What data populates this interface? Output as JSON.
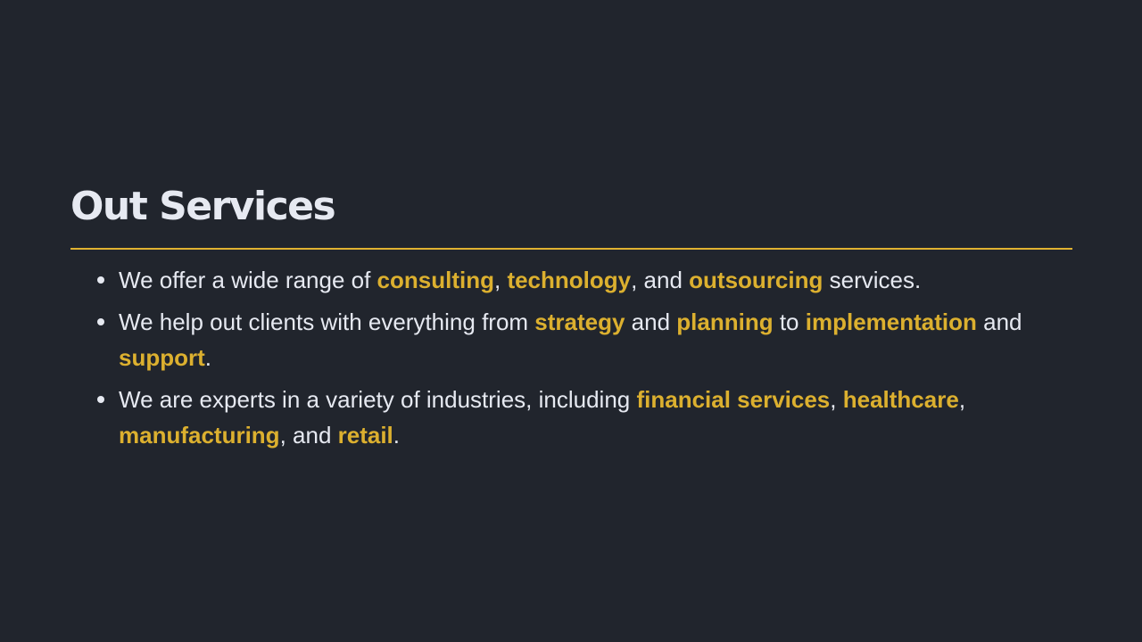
{
  "slide": {
    "title": "Out Services",
    "bullets": [
      {
        "segments": [
          {
            "text": "We offer a wide range of ",
            "highlight": false
          },
          {
            "text": "consulting",
            "highlight": true
          },
          {
            "text": ", ",
            "highlight": false
          },
          {
            "text": "technology",
            "highlight": true
          },
          {
            "text": ", and ",
            "highlight": false
          },
          {
            "text": "outsourcing",
            "highlight": true
          },
          {
            "text": " services.",
            "highlight": false
          }
        ]
      },
      {
        "segments": [
          {
            "text": "We help out clients with everything from ",
            "highlight": false
          },
          {
            "text": "strategy",
            "highlight": true
          },
          {
            "text": " and ",
            "highlight": false
          },
          {
            "text": "planning",
            "highlight": true
          },
          {
            "text": " to ",
            "highlight": false
          },
          {
            "text": "implementation",
            "highlight": true
          },
          {
            "text": " and ",
            "highlight": false
          },
          {
            "text": "support",
            "highlight": true
          },
          {
            "text": ".",
            "highlight": false
          }
        ]
      },
      {
        "segments": [
          {
            "text": "We are experts in a variety of industries, including ",
            "highlight": false
          },
          {
            "text": "financial services",
            "highlight": true
          },
          {
            "text": ", ",
            "highlight": false
          },
          {
            "text": "healthcare",
            "highlight": true
          },
          {
            "text": ", ",
            "highlight": false
          },
          {
            "text": "manufacturing",
            "highlight": true
          },
          {
            "text": ", and ",
            "highlight": false
          },
          {
            "text": "retail",
            "highlight": true
          },
          {
            "text": ".",
            "highlight": false
          }
        ]
      }
    ]
  },
  "colors": {
    "background": "#21252d",
    "text": "#e6e9f1",
    "accent": "#dcb02f",
    "rule": "#e0b231"
  }
}
